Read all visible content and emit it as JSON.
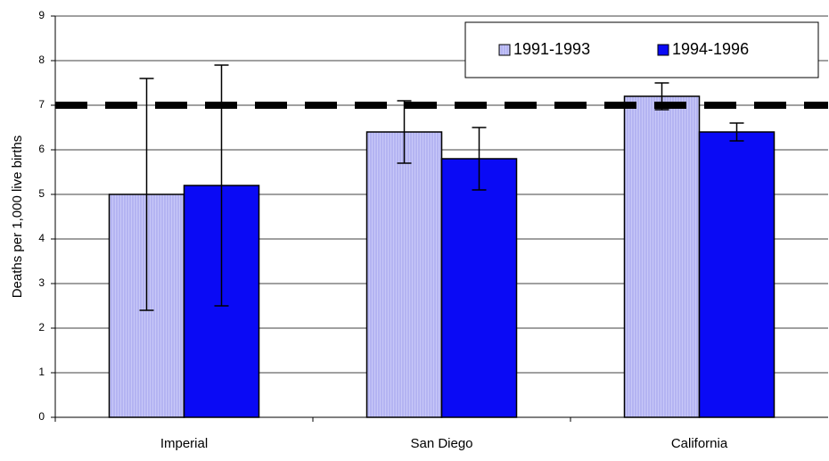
{
  "chart_data": {
    "type": "bar",
    "y_label": "Deaths per 1,000 live births",
    "categories": [
      "Imperial",
      "San Diego",
      "California"
    ],
    "series": [
      {
        "name": "1991-1993",
        "color": "#b4b4f2",
        "values": [
          5,
          6.4,
          7.2
        ],
        "errors": [
          2.6,
          0.7,
          0.3
        ]
      },
      {
        "name": "1994-1996",
        "color": "#0a0af5",
        "values": [
          5.2,
          5.8,
          6.4
        ],
        "errors": [
          2.7,
          0.7,
          0.2
        ]
      }
    ],
    "reference_line": 7,
    "ylim": [
      0,
      9
    ],
    "yticks": [
      0,
      1,
      2,
      3,
      4,
      5,
      6,
      7,
      8,
      9
    ],
    "grid": true,
    "legend": "top-right"
  }
}
